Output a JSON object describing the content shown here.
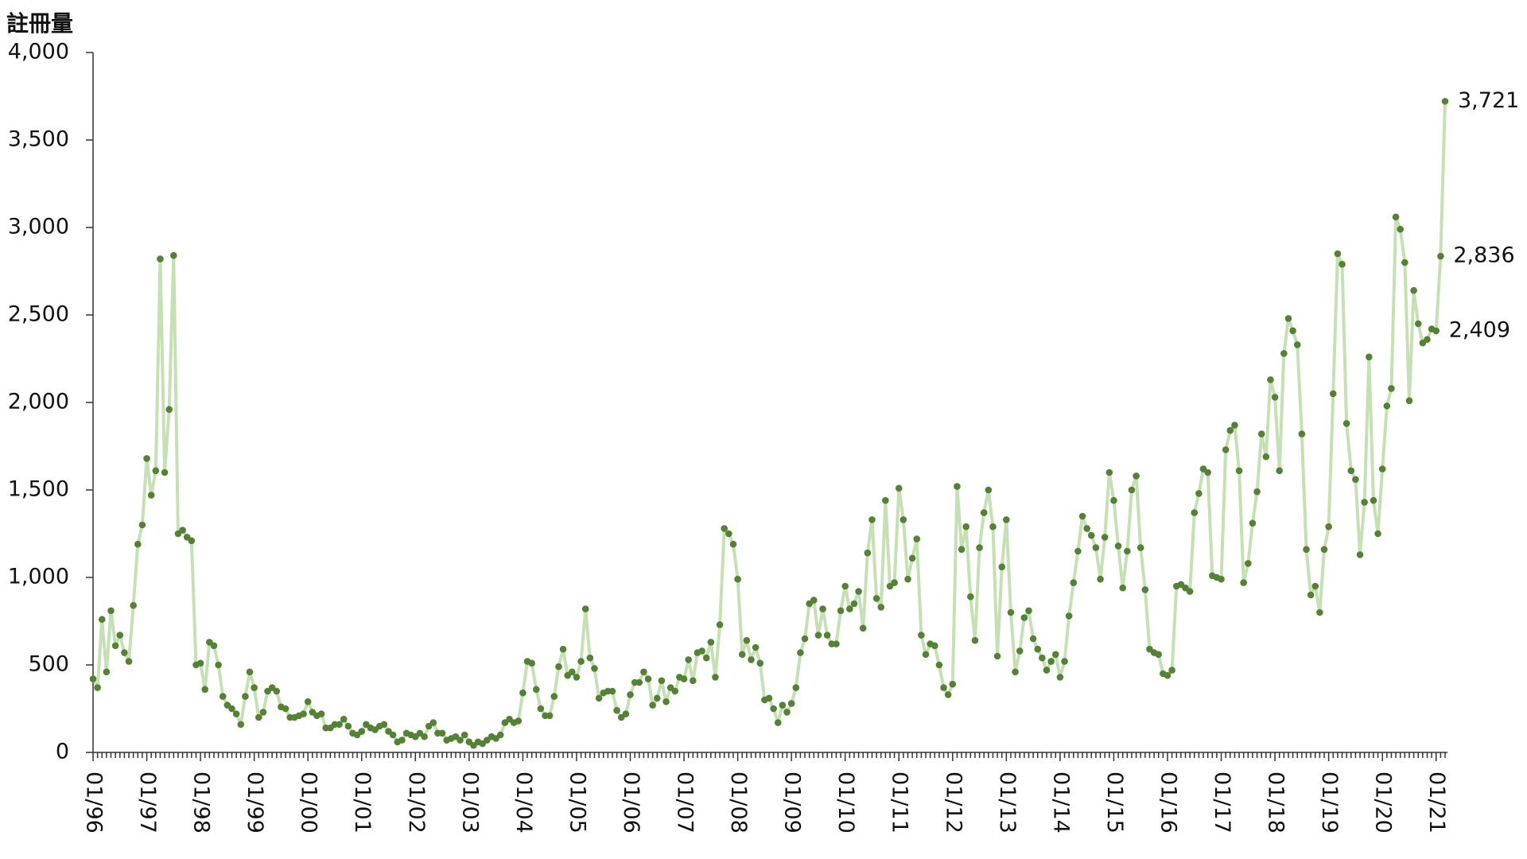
{
  "chart_data": {
    "type": "line",
    "y_label": "註冊量",
    "categories": [
      "01/96",
      null,
      null,
      null,
      null,
      null,
      null,
      null,
      null,
      null,
      null,
      null,
      "01/97",
      null,
      null,
      null,
      null,
      null,
      null,
      null,
      null,
      null,
      null,
      null,
      "01/98",
      null,
      null,
      null,
      null,
      null,
      null,
      null,
      null,
      null,
      null,
      null,
      "01/99",
      null,
      null,
      null,
      null,
      null,
      null,
      null,
      null,
      null,
      null,
      null,
      "01/00",
      null,
      null,
      null,
      null,
      null,
      null,
      null,
      null,
      null,
      null,
      null,
      "01/01",
      null,
      null,
      null,
      null,
      null,
      null,
      null,
      null,
      null,
      null,
      null,
      "01/02",
      null,
      null,
      null,
      null,
      null,
      null,
      null,
      null,
      null,
      null,
      null,
      "01/03",
      null,
      null,
      null,
      null,
      null,
      null,
      null,
      null,
      null,
      null,
      null,
      "01/04",
      null,
      null,
      null,
      null,
      null,
      null,
      null,
      null,
      null,
      null,
      null,
      "01/05",
      null,
      null,
      null,
      null,
      null,
      null,
      null,
      null,
      null,
      null,
      null,
      "01/06",
      null,
      null,
      null,
      null,
      null,
      null,
      null,
      null,
      null,
      null,
      null,
      "01/07",
      null,
      null,
      null,
      null,
      null,
      null,
      null,
      null,
      null,
      null,
      null,
      "01/08",
      null,
      null,
      null,
      null,
      null,
      null,
      null,
      null,
      null,
      null,
      null,
      "01/09",
      null,
      null,
      null,
      null,
      null,
      null,
      null,
      null,
      null,
      null,
      null,
      "01/10",
      null,
      null,
      null,
      null,
      null,
      null,
      null,
      null,
      null,
      null,
      null,
      "01/11",
      null,
      null,
      null,
      null,
      null,
      null,
      null,
      null,
      null,
      null,
      null,
      "01/12",
      null,
      null,
      null,
      null,
      null,
      null,
      null,
      null,
      null,
      null,
      null,
      "01/13",
      null,
      null,
      null,
      null,
      null,
      null,
      null,
      null,
      null,
      null,
      null,
      "01/14",
      null,
      null,
      null,
      null,
      null,
      null,
      null,
      null,
      null,
      null,
      null,
      "01/15",
      null,
      null,
      null,
      null,
      null,
      null,
      null,
      null,
      null,
      null,
      null,
      "01/16",
      null,
      null,
      null,
      null,
      null,
      null,
      null,
      null,
      null,
      null,
      null,
      "01/17",
      null,
      null,
      null,
      null,
      null,
      null,
      null,
      null,
      null,
      null,
      null,
      "01/18",
      null,
      null,
      null,
      null,
      null,
      null,
      null,
      null,
      null,
      null,
      null,
      "01/19",
      null,
      null,
      null,
      null,
      null,
      null,
      null,
      null,
      null,
      null,
      null,
      "01/20",
      null,
      null,
      null,
      null,
      null,
      null,
      null,
      null,
      null,
      null,
      null,
      "01/21",
      null,
      null
    ],
    "values": [
      420,
      370,
      760,
      460,
      810,
      610,
      670,
      570,
      520,
      840,
      1190,
      1300,
      1680,
      1470,
      1610,
      2820,
      1600,
      1960,
      2840,
      1250,
      1270,
      1230,
      1210,
      500,
      510,
      360,
      630,
      610,
      500,
      320,
      270,
      250,
      220,
      160,
      320,
      460,
      370,
      200,
      230,
      350,
      370,
      350,
      260,
      250,
      200,
      200,
      210,
      220,
      290,
      230,
      210,
      220,
      140,
      140,
      160,
      160,
      190,
      150,
      110,
      100,
      120,
      160,
      140,
      130,
      150,
      160,
      120,
      100,
      60,
      70,
      110,
      100,
      90,
      110,
      90,
      150,
      170,
      110,
      110,
      70,
      80,
      90,
      70,
      100,
      60,
      40,
      60,
      50,
      70,
      90,
      80,
      100,
      170,
      190,
      170,
      180,
      340,
      520,
      510,
      360,
      250,
      210,
      210,
      320,
      490,
      590,
      440,
      460,
      430,
      520,
      820,
      540,
      480,
      310,
      340,
      350,
      350,
      240,
      200,
      220,
      330,
      400,
      400,
      460,
      420,
      270,
      310,
      410,
      290,
      370,
      350,
      430,
      420,
      530,
      410,
      570,
      580,
      540,
      630,
      430,
      730,
      1280,
      1250,
      1190,
      990,
      560,
      640,
      530,
      600,
      510,
      300,
      310,
      250,
      170,
      270,
      230,
      280,
      370,
      570,
      650,
      850,
      870,
      670,
      820,
      670,
      620,
      620,
      810,
      950,
      820,
      850,
      920,
      710,
      1140,
      1330,
      880,
      830,
      1440,
      950,
      970,
      1510,
      1330,
      990,
      1110,
      1220,
      670,
      560,
      620,
      610,
      500,
      370,
      330,
      390,
      1520,
      1160,
      1290,
      890,
      640,
      1170,
      1370,
      1500,
      1290,
      550,
      1060,
      1330,
      800,
      460,
      580,
      770,
      810,
      650,
      590,
      540,
      470,
      520,
      560,
      430,
      520,
      780,
      970,
      1150,
      1350,
      1280,
      1240,
      1170,
      990,
      1230,
      1600,
      1440,
      1180,
      940,
      1150,
      1500,
      1580,
      1170,
      930,
      590,
      570,
      560,
      450,
      440,
      470,
      950,
      960,
      940,
      920,
      1370,
      1480,
      1620,
      1600,
      1010,
      1000,
      990,
      1730,
      1840,
      1870,
      1610,
      970,
      1080,
      1310,
      1490,
      1820,
      1690,
      2130,
      2030,
      1610,
      2280,
      2480,
      2410,
      2330,
      1820,
      1160,
      900,
      950,
      800,
      1160,
      1290,
      2050,
      2850,
      2790,
      1880,
      1610,
      1560,
      1130,
      1430,
      2260,
      1440,
      1250,
      1620,
      1980,
      2080,
      3060,
      2990,
      2800,
      2010,
      2640,
      2450,
      2340,
      2360,
      2420,
      2409,
      2836,
      3721
    ],
    "value_labels": [
      null,
      null,
      null,
      null,
      null,
      null,
      null,
      null,
      null,
      null,
      null,
      null,
      null,
      null,
      null,
      null,
      null,
      null,
      null,
      null,
      null,
      null,
      null,
      null,
      null,
      null,
      null,
      null,
      null,
      null,
      null,
      null,
      null,
      null,
      null,
      null,
      null,
      null,
      null,
      null,
      null,
      null,
      null,
      null,
      null,
      null,
      null,
      null,
      null,
      null,
      null,
      null,
      null,
      null,
      null,
      null,
      null,
      null,
      null,
      null,
      null,
      null,
      null,
      null,
      null,
      null,
      null,
      null,
      null,
      null,
      null,
      null,
      null,
      null,
      null,
      null,
      null,
      null,
      null,
      null,
      null,
      null,
      null,
      null,
      null,
      null,
      null,
      null,
      null,
      null,
      null,
      null,
      null,
      null,
      null,
      null,
      null,
      null,
      null,
      null,
      null,
      null,
      null,
      null,
      null,
      null,
      null,
      null,
      null,
      null,
      null,
      null,
      null,
      null,
      null,
      null,
      null,
      null,
      null,
      null,
      null,
      null,
      null,
      null,
      null,
      null,
      null,
      null,
      null,
      null,
      null,
      null,
      null,
      null,
      null,
      null,
      null,
      null,
      null,
      null,
      null,
      null,
      null,
      null,
      null,
      null,
      null,
      null,
      null,
      null,
      null,
      null,
      null,
      null,
      null,
      null,
      null,
      null,
      null,
      null,
      null,
      null,
      null,
      null,
      null,
      null,
      null,
      null,
      null,
      null,
      null,
      null,
      null,
      null,
      null,
      null,
      null,
      null,
      null,
      null,
      null,
      null,
      null,
      null,
      null,
      null,
      null,
      null,
      null,
      null,
      null,
      null,
      null,
      null,
      null,
      null,
      null,
      null,
      null,
      null,
      null,
      null,
      null,
      null,
      null,
      null,
      null,
      null,
      null,
      null,
      null,
      null,
      null,
      null,
      null,
      null,
      null,
      null,
      null,
      null,
      null,
      null,
      null,
      null,
      null,
      null,
      null,
      null,
      null,
      null,
      null,
      null,
      null,
      null,
      null,
      null,
      null,
      null,
      null,
      null,
      null,
      null,
      null,
      null,
      null,
      null,
      null,
      null,
      null,
      null,
      null,
      null,
      null,
      null,
      null,
      null,
      null,
      null,
      null,
      null,
      null,
      null,
      null,
      null,
      null,
      null,
      null,
      null,
      null,
      null,
      null,
      null,
      null,
      null,
      null,
      null,
      null,
      null,
      null,
      null,
      null,
      null,
      null,
      null,
      null,
      null,
      null,
      null,
      null,
      null,
      null,
      null,
      null,
      null,
      null,
      null,
      null,
      null,
      null,
      null,
      "2,409",
      "2,836",
      "3,721"
    ],
    "color": "#c5e0b4",
    "marker_color": "#548235",
    "ylim": [
      0,
      4000
    ],
    "yticks": [
      0,
      500,
      {
        "value": 1000,
        "label": "1,000"
      },
      {
        "value": 1500,
        "label": "1,500"
      },
      {
        "value": 2000,
        "label": "2,000"
      },
      {
        "value": 2500,
        "label": "2,500"
      },
      {
        "value": 3000,
        "label": "3,000"
      },
      {
        "value": 3500,
        "label": "3,500"
      },
      {
        "value": 4000,
        "label": "4,000"
      }
    ],
    "grid": false
  }
}
